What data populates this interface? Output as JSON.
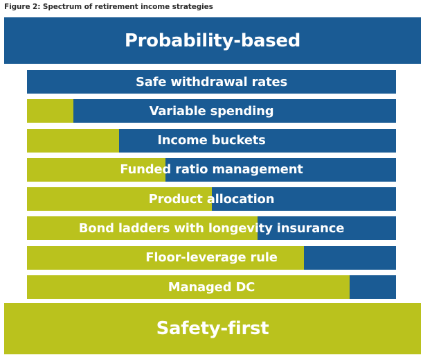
{
  "figure": {
    "title": "Figure 2: Spectrum of retirement income strategies"
  },
  "top_band": {
    "label": "Probability-based"
  },
  "bottom_band": {
    "label": "Safety-first"
  },
  "colors": {
    "probability_blue": "#1a5b94",
    "safety_green": "#bac21d",
    "text": "#ffffff"
  },
  "strategies": [
    {
      "label": "Safe withdrawal rates",
      "safety_share": 0.0
    },
    {
      "label": "Variable spending",
      "safety_share": 0.125
    },
    {
      "label": "Income buckets",
      "safety_share": 0.25
    },
    {
      "label": "Funded ratio management",
      "safety_share": 0.375
    },
    {
      "label": "Product allocation",
      "safety_share": 0.5
    },
    {
      "label": "Bond ladders with longevity insurance",
      "safety_share": 0.625
    },
    {
      "label": "Floor-leverage rule",
      "safety_share": 0.75
    },
    {
      "label": "Managed DC",
      "safety_share": 0.875
    }
  ]
}
